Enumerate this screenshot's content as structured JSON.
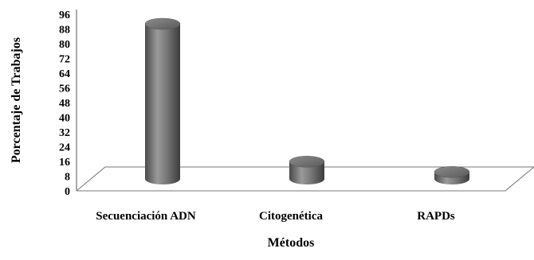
{
  "chart_data": {
    "type": "bar",
    "style": "3d-cylinder",
    "categories": [
      "Secuenciación ADN",
      "Citogenética",
      "RAPDs"
    ],
    "values": [
      90,
      10,
      4
    ],
    "xlabel": "Métodos",
    "ylabel": "Porcentaje de Trabajos",
    "ylim": [
      0,
      96
    ],
    "yticks": [
      0,
      8,
      16,
      24,
      32,
      40,
      48,
      56,
      64,
      72,
      80,
      88,
      96
    ],
    "grid": false,
    "legend": "none",
    "bar_color": "#6e6e6e"
  }
}
